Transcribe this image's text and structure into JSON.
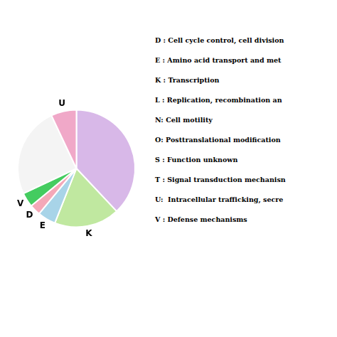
{
  "chart_data": {
    "type": "pie",
    "categories": [
      null,
      "K",
      "E",
      "D",
      "V",
      null,
      "U"
    ],
    "values": [
      38,
      18,
      5,
      3,
      4,
      25,
      7
    ],
    "colors": [
      "#d8b8e8",
      "#c0e8a0",
      "#a8d4e8",
      "#f4a8b8",
      "#44cc60",
      "#f4f4f4",
      "#f0a8c8"
    ],
    "annotations": [
      "D : Cell cycle control, cell division",
      "E : Amino acid transport and met",
      "K : Transcription",
      "L : Replication, recombination an",
      "N: Cell motility",
      "O: Posttranslational modification",
      "S : Function unknown",
      "T : Signal transduction mechanisn",
      "U:  Intracellular trafficking, secre",
      "V : Defense mechanisms"
    ]
  }
}
